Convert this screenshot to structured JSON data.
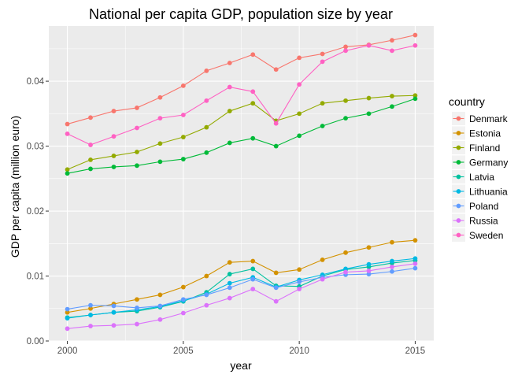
{
  "chart_data": {
    "type": "line",
    "title": "National per capita GDP, population size by year",
    "xlabel": "year",
    "ylabel": "GDP per capita (million euro)",
    "xlim": [
      1999.2,
      2015.8
    ],
    "ylim": [
      0,
      0.0485
    ],
    "x_ticks": [
      2000,
      2005,
      2010,
      2015
    ],
    "y_ticks": [
      0,
      0.01,
      0.02,
      0.03,
      0.04
    ],
    "y_tick_labels": [
      "0.00",
      "0.01",
      "0.02",
      "0.03",
      "0.04"
    ],
    "grid": true,
    "panel_background": "#EBEBEB",
    "grid_color": "#FFFFFF",
    "legend": {
      "title": "country",
      "position": "right"
    },
    "x": [
      2000,
      2001,
      2002,
      2003,
      2004,
      2005,
      2006,
      2007,
      2008,
      2009,
      2010,
      2011,
      2012,
      2013,
      2014,
      2015
    ],
    "series": [
      {
        "name": "Denmark",
        "color": "#F8766D",
        "values": [
          0.0334,
          0.0344,
          0.0354,
          0.0359,
          0.0375,
          0.0393,
          0.0416,
          0.0428,
          0.0441,
          0.0418,
          0.0436,
          0.0442,
          0.0453,
          0.0456,
          0.0463,
          0.0471
        ]
      },
      {
        "name": "Estonia",
        "color": "#D39200",
        "values": [
          0.0044,
          0.005,
          0.0057,
          0.0064,
          0.0071,
          0.0083,
          0.01,
          0.0121,
          0.0123,
          0.0105,
          0.011,
          0.0125,
          0.0136,
          0.0144,
          0.0152,
          0.0155
        ]
      },
      {
        "name": "Finland",
        "color": "#93AA00",
        "values": [
          0.0264,
          0.0279,
          0.0285,
          0.0291,
          0.0304,
          0.0314,
          0.0329,
          0.0354,
          0.0366,
          0.0339,
          0.035,
          0.0366,
          0.037,
          0.0374,
          0.0377,
          0.0378
        ]
      },
      {
        "name": "Germany",
        "color": "#00BA38",
        "values": [
          0.0258,
          0.0265,
          0.0268,
          0.027,
          0.0276,
          0.028,
          0.029,
          0.0305,
          0.0312,
          0.03,
          0.0316,
          0.0331,
          0.0343,
          0.035,
          0.0361,
          0.0373
        ]
      },
      {
        "name": "Latvia",
        "color": "#00C19F",
        "values": [
          0.0036,
          0.004,
          0.0044,
          0.0046,
          0.0052,
          0.0061,
          0.0075,
          0.0103,
          0.0111,
          0.0085,
          0.0084,
          0.01,
          0.011,
          0.0114,
          0.012,
          0.0124
        ]
      },
      {
        "name": "Lithuania",
        "color": "#00B9E3",
        "values": [
          0.0035,
          0.004,
          0.0044,
          0.0048,
          0.0053,
          0.0062,
          0.0072,
          0.0089,
          0.0098,
          0.0083,
          0.0094,
          0.0102,
          0.0111,
          0.0118,
          0.0123,
          0.0127
        ]
      },
      {
        "name": "Poland",
        "color": "#619CFF",
        "values": [
          0.0049,
          0.0055,
          0.0054,
          0.0051,
          0.0054,
          0.0064,
          0.0071,
          0.0082,
          0.0095,
          0.0082,
          0.0091,
          0.0098,
          0.0102,
          0.0103,
          0.0107,
          0.0112
        ]
      },
      {
        "name": "Russia",
        "color": "#DB72FB",
        "values": [
          0.0019,
          0.0023,
          0.0024,
          0.0026,
          0.0033,
          0.0043,
          0.0055,
          0.0066,
          0.008,
          0.0061,
          0.008,
          0.0095,
          0.0106,
          0.0108,
          0.0114,
          0.0119
        ]
      },
      {
        "name": "Sweden",
        "color": "#FF61C3",
        "values": [
          0.0319,
          0.0302,
          0.0315,
          0.0328,
          0.0343,
          0.0348,
          0.037,
          0.0391,
          0.0384,
          0.0335,
          0.0395,
          0.043,
          0.0447,
          0.0455,
          0.0447,
          0.0455
        ]
      }
    ]
  }
}
